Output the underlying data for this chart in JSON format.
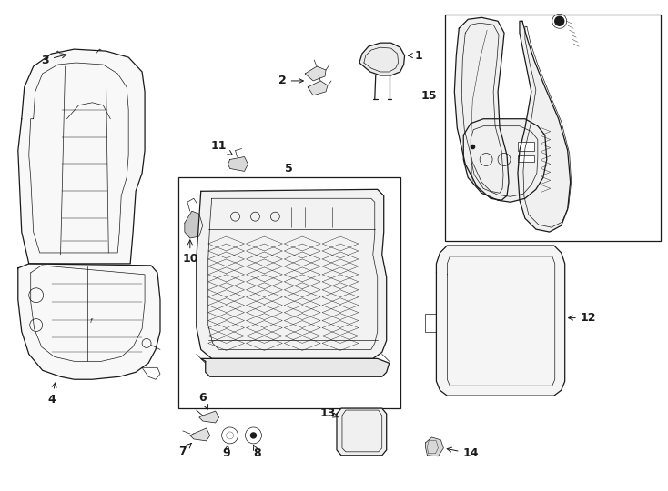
{
  "bg_color": "#ffffff",
  "line_color": "#1a1a1a",
  "lw": 0.9,
  "tlw": 0.5,
  "fig_width": 7.34,
  "fig_height": 5.4
}
